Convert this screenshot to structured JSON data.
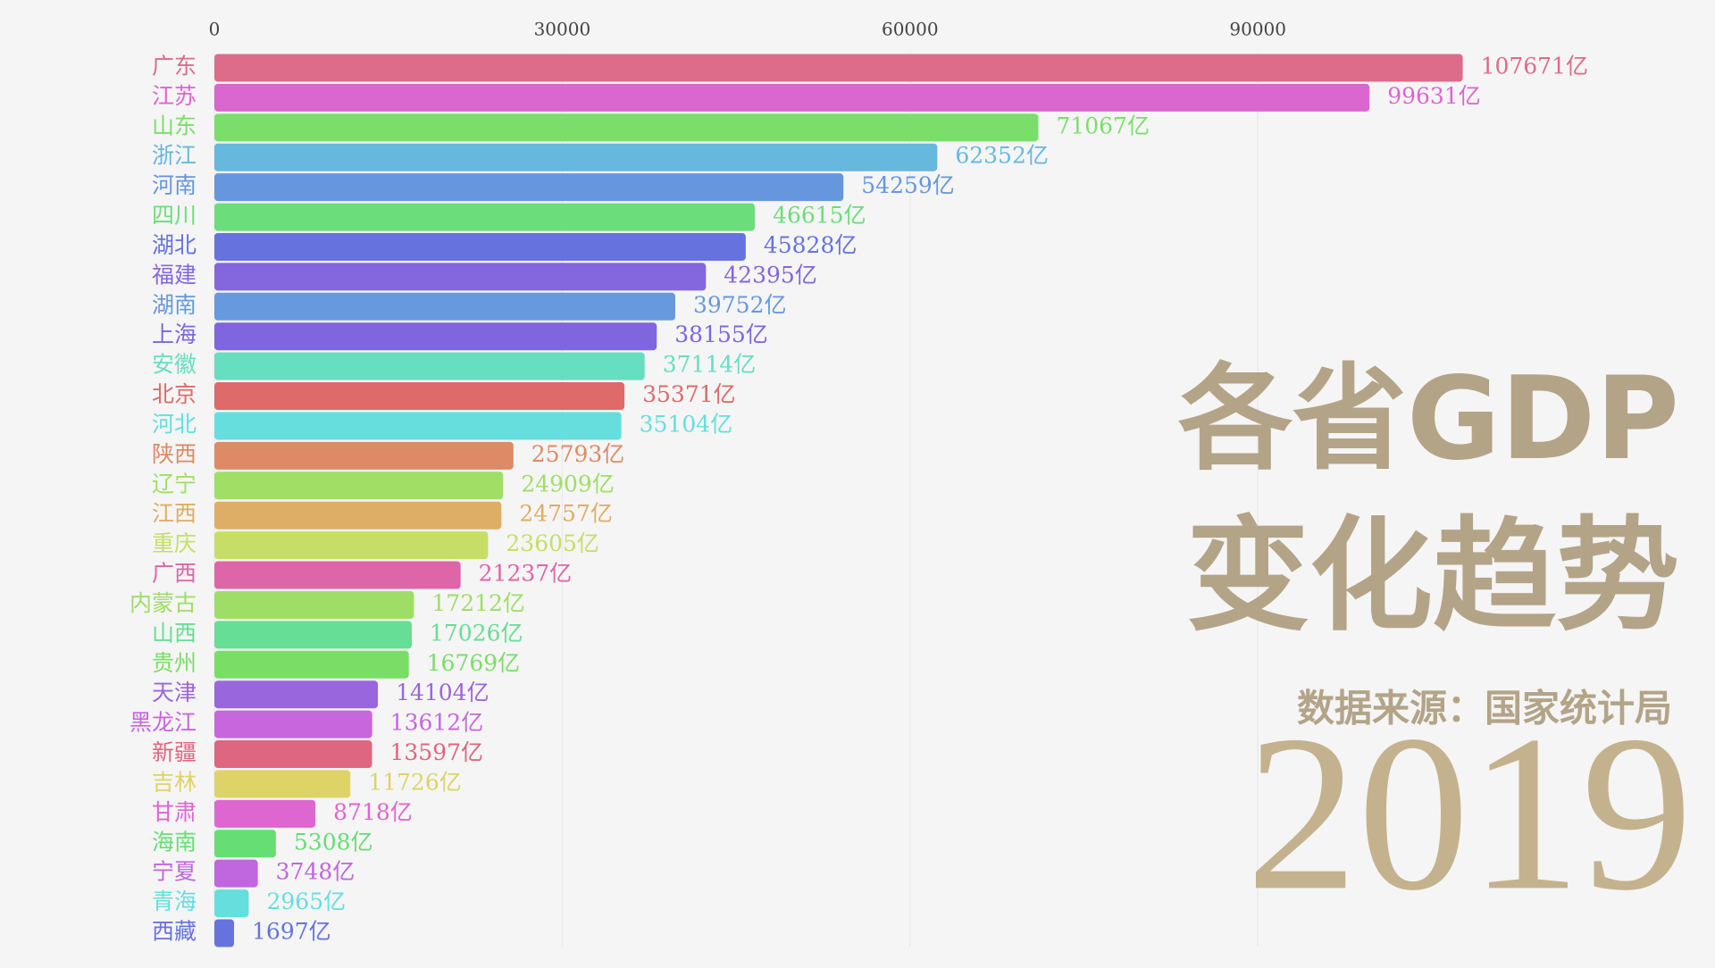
{
  "chart_data": {
    "type": "bar",
    "orientation": "horizontal",
    "title": "各省GDP",
    "subtitle": "变化趋势",
    "source": "数据来源：国家统计局",
    "year": "2019",
    "categories": [
      "广东",
      "江苏",
      "山东",
      "浙江",
      "河南",
      "四川",
      "湖北",
      "福建",
      "湖南",
      "上海",
      "安徽",
      "北京",
      "河北",
      "陕西",
      "辽宁",
      "江西",
      "重庆",
      "广西",
      "内蒙古",
      "山西",
      "贵州",
      "天津",
      "黑龙江",
      "新疆",
      "吉林",
      "甘肃",
      "海南",
      "宁夏",
      "青海",
      "西藏"
    ],
    "values": [
      107671,
      99631,
      71067,
      62352,
      54259,
      46615,
      45828,
      42395,
      39752,
      38155,
      37114,
      35371,
      35104,
      25793,
      24909,
      24757,
      23605,
      21237,
      17212,
      17026,
      16769,
      14104,
      13612,
      13597,
      11726,
      8718,
      5308,
      3748,
      2965,
      1697
    ],
    "value_labels": [
      "107671亿",
      "99631亿",
      "71067亿",
      "62352亿",
      "54259亿",
      "46615亿",
      "45828亿",
      "42395亿",
      "39752亿",
      "38155亿",
      "37114亿",
      "35371亿",
      "35104亿",
      "25793亿",
      "24909亿",
      "24757亿",
      "23605亿",
      "21237亿",
      "17212亿",
      "17026亿",
      "16769亿",
      "14104亿",
      "13612亿",
      "13597亿",
      "11726亿",
      "8718亿",
      "5308亿",
      "3748亿",
      "2965亿",
      "1697亿"
    ],
    "colors": [
      "#dd6b8a",
      "#db66cf",
      "#7ade6b",
      "#66b8de",
      "#6697de",
      "#6bdd7a",
      "#6673de",
      "#8466de",
      "#6699de",
      "#7f66de",
      "#66dec0",
      "#de6a6a",
      "#66dede",
      "#de8a66",
      "#a0de66",
      "#dead66",
      "#c6de66",
      "#de66a8",
      "#9ede66",
      "#66de95",
      "#7ade66",
      "#9a66de",
      "#c866de",
      "#de6680",
      "#ded366",
      "#de66d0",
      "#66de74",
      "#c066de",
      "#66dede",
      "#6673de"
    ],
    "xlim": [
      0,
      120000
    ],
    "xticks": [
      0,
      30000,
      60000,
      90000
    ],
    "grid": true
  }
}
